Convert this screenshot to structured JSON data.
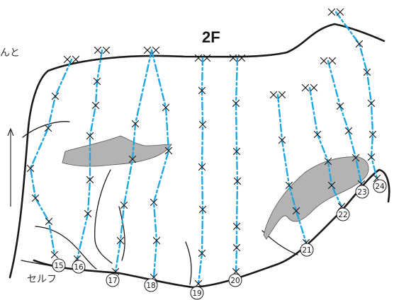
{
  "floor_label": "2F",
  "top_left_text": "んと",
  "self_label": "セルフ",
  "routes": [
    {
      "number": "15",
      "label": "⑮"
    },
    {
      "number": "16",
      "label": "⑯"
    },
    {
      "number": "17",
      "label": "⑰"
    },
    {
      "number": "18",
      "label": "⑱"
    },
    {
      "number": "19",
      "label": "⑲"
    },
    {
      "number": "20",
      "label": "⑳"
    },
    {
      "number": "21",
      "label": "㉑"
    },
    {
      "number": "22",
      "label": "㉒"
    },
    {
      "number": "23",
      "label": "㉓"
    },
    {
      "number": "24",
      "label": "㉔"
    }
  ],
  "colors": {
    "route": "#1ea7e1",
    "hold": "#b3b3b3",
    "outline": "#1a1a1a"
  },
  "icons": {
    "bolt": "x-mark",
    "anchor": "double-x-mark"
  }
}
